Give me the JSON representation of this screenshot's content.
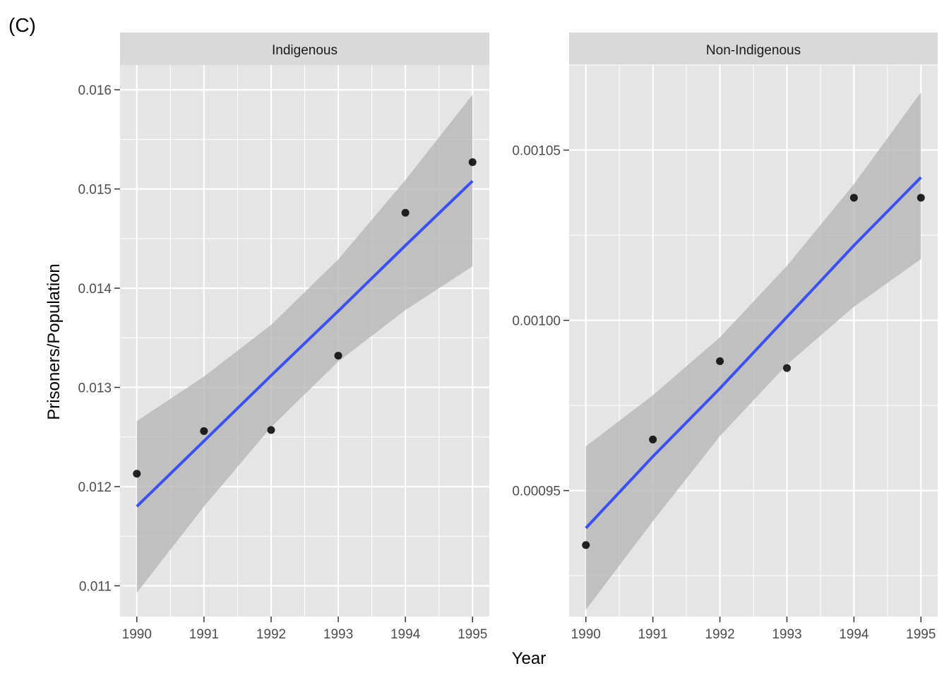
{
  "figure": {
    "tag": "(C)",
    "xlabel": "Year",
    "ylabel": "Prisoners/Population"
  },
  "colors": {
    "panel_bg": "#e5e5e5",
    "strip_bg": "#d9d9d9",
    "grid": "#ffffff",
    "points": "#000000",
    "fit_line": "#3a50f0",
    "ribbon": "#b3b3b3"
  },
  "chart_data": [
    {
      "type": "scatter",
      "title": "Indigenous",
      "xlabel": "Year",
      "ylabel": "Prisoners/Population",
      "x": [
        1990,
        1991,
        1992,
        1993,
        1994,
        1995
      ],
      "y": [
        0.01213,
        0.01256,
        0.01257,
        0.01332,
        0.01476,
        0.01527
      ],
      "xlim": [
        1989.75,
        1995.25
      ],
      "ylim": [
        0.01069,
        0.01625
      ],
      "xticks": [
        1990,
        1991,
        1992,
        1993,
        1994,
        1995
      ],
      "yticks": [
        0.011,
        0.012,
        0.013,
        0.014,
        0.015,
        0.016
      ],
      "ytick_labels": [
        "0.011",
        "0.012",
        "0.013",
        "0.014",
        "0.015",
        "0.016"
      ],
      "fit": {
        "method": "lm",
        "x": [
          1990,
          1991,
          1992,
          1993,
          1994,
          1995
        ],
        "y": [
          0.0118,
          0.01246,
          0.01312,
          0.01377,
          0.01443,
          0.01508
        ],
        "ci_lower": [
          0.01093,
          0.0118,
          0.0126,
          0.01326,
          0.01378,
          0.01422
        ],
        "ci_upper": [
          0.01266,
          0.01311,
          0.01363,
          0.01429,
          0.01509,
          0.01595
        ]
      },
      "grid": true
    },
    {
      "type": "scatter",
      "title": "Non-Indigenous",
      "xlabel": "Year",
      "ylabel": "Prisoners/Population",
      "x": [
        1990,
        1991,
        1992,
        1993,
        1994,
        1995
      ],
      "y": [
        0.000934,
        0.000965,
        0.000988,
        0.000986,
        0.001036,
        0.001036
      ],
      "xlim": [
        1989.75,
        1995.25
      ],
      "ylim": [
        0.000913,
        0.001075
      ],
      "xticks": [
        1990,
        1991,
        1992,
        1993,
        1994,
        1995
      ],
      "yticks": [
        0.00095,
        0.001,
        0.00105
      ],
      "ytick_labels": [
        "0.00095",
        "0.00100",
        "0.00105"
      ],
      "fit": {
        "method": "lm",
        "x": [
          1990,
          1991,
          1992,
          1993,
          1994,
          1995
        ],
        "y": [
          0.000939,
          0.00096,
          0.00098,
          0.001001,
          0.001022,
          0.001042
        ],
        "ci_lower": [
          0.000915,
          0.000941,
          0.000966,
          0.000987,
          0.001004,
          0.001018
        ],
        "ci_upper": [
          0.000963,
          0.000978,
          0.000995,
          0.001016,
          0.00104,
          0.001067
        ]
      },
      "grid": true
    }
  ]
}
